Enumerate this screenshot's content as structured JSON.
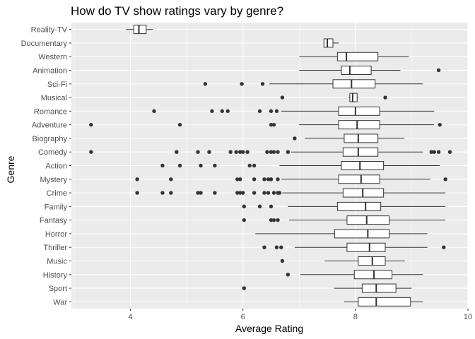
{
  "chart_data": {
    "type": "boxplot",
    "orientation": "horizontal",
    "title": "How do TV show ratings vary by genre?",
    "xlabel": "Average Rating",
    "ylabel": "Genre",
    "xlim": [
      2.95,
      10.0
    ],
    "xticks": [
      4,
      6,
      8,
      10
    ],
    "grid": true,
    "legend": "none",
    "colors": {
      "panel": "#ebebeb",
      "grid_major": "#ffffff",
      "box_fill": "#ffffff",
      "box_stroke": "#333333",
      "outlier": "#333333"
    },
    "categories": [
      "Reality-TV",
      "Documentary",
      "Western",
      "Animation",
      "Sci-Fi",
      "Musical",
      "Romance",
      "Adventure",
      "Biography",
      "Comedy",
      "Action",
      "Mystery",
      "Crime",
      "Family",
      "Fantasy",
      "Horror",
      "Thriller",
      "Music",
      "History",
      "Sport",
      "War"
    ],
    "boxes": [
      {
        "genre": "Reality-TV",
        "min": 3.92,
        "q1": 4.06,
        "median": 4.15,
        "q3": 4.28,
        "max": 4.4,
        "outliers": []
      },
      {
        "genre": "Documentary",
        "min": 7.43,
        "q1": 7.44,
        "median": 7.5,
        "q3": 7.6,
        "max": 7.7,
        "outliers": []
      },
      {
        "genre": "Western",
        "min": 7.0,
        "q1": 7.68,
        "median": 7.84,
        "q3": 8.4,
        "max": 8.95,
        "outliers": []
      },
      {
        "genre": "Animation",
        "min": 7.0,
        "q1": 7.75,
        "median": 7.9,
        "q3": 8.28,
        "max": 8.8,
        "outliers": [
          9.48
        ]
      },
      {
        "genre": "Sci-Fi",
        "min": 6.47,
        "q1": 7.6,
        "median": 7.93,
        "q3": 8.35,
        "max": 9.2,
        "outliers": [
          5.33,
          5.98,
          6.35
        ]
      },
      {
        "genre": "Musical",
        "min": 7.88,
        "q1": 7.9,
        "median": 7.95,
        "q3": 8.03,
        "max": 8.05,
        "outliers": [
          6.7,
          8.53
        ]
      },
      {
        "genre": "Romance",
        "min": 6.68,
        "q1": 7.7,
        "median": 8.0,
        "q3": 8.43,
        "max": 9.4,
        "outliers": [
          4.42,
          5.45,
          5.63,
          5.73,
          6.3,
          6.5,
          6.6
        ]
      },
      {
        "genre": "Adventure",
        "min": 7.0,
        "q1": 7.7,
        "median": 8.03,
        "q3": 8.43,
        "max": 9.4,
        "outliers": [
          3.3,
          4.88,
          6.5,
          6.55,
          9.5
        ]
      },
      {
        "genre": "Biography",
        "min": 7.1,
        "q1": 7.8,
        "median": 8.05,
        "q3": 8.4,
        "max": 8.87,
        "outliers": [
          6.92
        ]
      },
      {
        "genre": "Comedy",
        "min": 6.85,
        "q1": 7.78,
        "median": 8.05,
        "q3": 8.4,
        "max": 9.2,
        "outliers": [
          3.3,
          4.82,
          5.2,
          5.4,
          5.78,
          5.88,
          5.95,
          6.0,
          6.08,
          6.43,
          6.5,
          6.55,
          6.62,
          6.8,
          9.35,
          9.4,
          9.48,
          9.68
        ]
      },
      {
        "genre": "Action",
        "min": 6.65,
        "q1": 7.75,
        "median": 8.08,
        "q3": 8.5,
        "max": 9.5,
        "outliers": [
          4.57,
          4.88,
          5.25,
          5.5,
          6.12,
          6.2
        ]
      },
      {
        "genre": "Mystery",
        "min": 6.68,
        "q1": 7.7,
        "median": 8.1,
        "q3": 8.43,
        "max": 9.33,
        "outliers": [
          4.12,
          4.72,
          5.9,
          5.95,
          6.2,
          6.38,
          6.45,
          6.5,
          6.62,
          9.6
        ]
      },
      {
        "genre": "Crime",
        "min": 6.7,
        "q1": 7.78,
        "median": 8.13,
        "q3": 8.5,
        "max": 9.6,
        "outliers": [
          4.12,
          4.57,
          4.72,
          5.2,
          5.25,
          5.5,
          5.9,
          5.95,
          6.0,
          6.2,
          6.38,
          6.45,
          6.55,
          6.62,
          6.65
        ]
      },
      {
        "genre": "Family",
        "min": 6.8,
        "q1": 7.68,
        "median": 8.18,
        "q3": 8.45,
        "max": 9.6,
        "outliers": [
          6.02,
          6.3,
          6.5
        ]
      },
      {
        "genre": "Fantasy",
        "min": 6.82,
        "q1": 7.85,
        "median": 8.2,
        "q3": 8.6,
        "max": 9.6,
        "outliers": [
          6.02,
          6.5,
          6.55,
          6.62
        ]
      },
      {
        "genre": "Horror",
        "min": 6.22,
        "q1": 7.63,
        "median": 8.22,
        "q3": 8.6,
        "max": 9.28,
        "outliers": []
      },
      {
        "genre": "Thriller",
        "min": 6.92,
        "q1": 7.85,
        "median": 8.25,
        "q3": 8.53,
        "max": 9.28,
        "outliers": [
          6.38,
          6.6,
          6.68,
          9.57
        ]
      },
      {
        "genre": "Music",
        "min": 7.45,
        "q1": 8.05,
        "median": 8.3,
        "q3": 8.53,
        "max": 8.88,
        "outliers": [
          6.7
        ]
      },
      {
        "genre": "History",
        "min": 7.02,
        "q1": 7.98,
        "median": 8.33,
        "q3": 8.65,
        "max": 9.2,
        "outliers": [
          6.8
        ]
      },
      {
        "genre": "Sport",
        "min": 7.62,
        "q1": 8.12,
        "median": 8.37,
        "q3": 8.72,
        "max": 9.0,
        "outliers": [
          6.02
        ]
      },
      {
        "genre": "War",
        "min": 7.8,
        "q1": 8.05,
        "median": 8.37,
        "q3": 8.98,
        "max": 9.2,
        "outliers": []
      }
    ]
  }
}
